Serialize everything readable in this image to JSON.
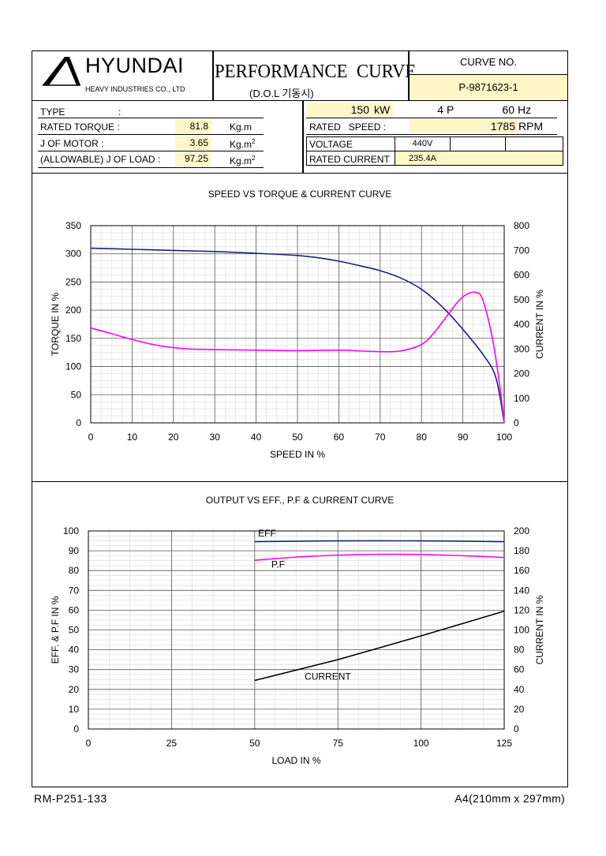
{
  "header": {
    "company": "HYUNDAI",
    "company_sub": "HEAVY INDUSTRIES CO., LTD",
    "doc_title": "PERFORMANCE  CURVE",
    "doc_subtitle": "(D.O.L 기동시)",
    "curve_no_label": "CURVE NO.",
    "curve_no_value": "P-9871623-1"
  },
  "specs_left": {
    "type_label": "TYPE",
    "type_colon": ":",
    "rated_torque_label": "RATED TORQUE :",
    "rated_torque_value": "81.8",
    "rated_torque_unit": "Kg.m",
    "j_motor_label": "J OF MOTOR :",
    "j_motor_value": "3.65",
    "j_motor_unit": "Kg.m",
    "j_load_label": "(ALLOWABLE) J OF LOAD :",
    "j_load_value": "97.25",
    "j_load_unit": "Kg.m",
    "unit_sup": "2"
  },
  "specs_right": {
    "power_value": "150",
    "power_unit": "kW",
    "poles_value": "4",
    "poles_unit": "P",
    "freq_value": "60",
    "freq_unit": "Hz",
    "speed_label": "RATED   SPEED :",
    "speed_value": "1785",
    "speed_unit": "RPM",
    "voltage_label": "VOLTAGE",
    "voltage_value": "440V",
    "current_label": "RATED CURRENT",
    "current_value": "235.4A"
  },
  "chart_data": [
    {
      "type": "line",
      "title": "SPEED VS TORQUE & CURRENT CURVE",
      "xlabel": "SPEED IN %",
      "ylabel": "TORQUE IN %",
      "y2label": "CURRENT IN %",
      "xlim": [
        0,
        100
      ],
      "ylim": [
        0,
        350
      ],
      "y2lim": [
        0,
        800
      ],
      "xticks": [
        0,
        10,
        20,
        30,
        40,
        50,
        60,
        70,
        80,
        90,
        100
      ],
      "yticks": [
        0,
        50,
        100,
        150,
        200,
        250,
        300,
        350
      ],
      "y2ticks": [
        0,
        100,
        200,
        300,
        400,
        500,
        600,
        700,
        800
      ],
      "grid": true,
      "series": [
        {
          "color": "#1a237e",
          "axis": "left",
          "x": [
            0,
            10,
            20,
            30,
            40,
            50,
            55,
            60,
            65,
            70,
            75,
            80,
            85,
            90,
            95,
            98,
            100
          ],
          "y": [
            310,
            308,
            306,
            304,
            301,
            297,
            293,
            287,
            279,
            270,
            257,
            237,
            206,
            166,
            120,
            80,
            0
          ]
        },
        {
          "color": "#ff00ff",
          "axis": "right",
          "x": [
            0,
            5,
            10,
            15,
            20,
            25,
            30,
            40,
            50,
            60,
            65,
            70,
            75,
            80,
            83,
            86,
            89,
            91,
            93,
            94.5,
            96,
            97.5,
            99,
            100
          ],
          "y": [
            385,
            362,
            338,
            318,
            305,
            299,
            297,
            295,
            293,
            295,
            292,
            289,
            292,
            318,
            365,
            430,
            495,
            522,
            530,
            512,
            430,
            310,
            140,
            0
          ]
        }
      ]
    },
    {
      "type": "line",
      "title": "OUTPUT VS EFF., P.F & CURRENT CURVE",
      "xlabel": "LOAD IN %",
      "ylabel": "EFF. & P.F IN %",
      "y2label": "CURRENT IN %",
      "xlim": [
        0,
        125
      ],
      "ylim": [
        0,
        100
      ],
      "y2lim": [
        0,
        200
      ],
      "xticks": [
        0,
        25,
        50,
        75,
        100,
        125
      ],
      "yticks": [
        0,
        10,
        20,
        30,
        40,
        50,
        60,
        70,
        80,
        90,
        100
      ],
      "y2ticks": [
        0,
        20,
        40,
        60,
        80,
        100,
        120,
        140,
        160,
        180,
        200
      ],
      "grid": true,
      "series": [
        {
          "name": "EFF",
          "color": "#1a237e",
          "axis": "left",
          "x": [
            50,
            75,
            100,
            125
          ],
          "y": [
            94.6,
            95.0,
            95.0,
            94.6
          ]
        },
        {
          "name": "P.F",
          "color": "#ff00ff",
          "axis": "left",
          "x": [
            50,
            62.5,
            75,
            87.5,
            100,
            112.5,
            125
          ],
          "y": [
            85.2,
            86.8,
            87.8,
            88.2,
            88.1,
            87.5,
            86.6
          ]
        },
        {
          "name": "CURRENT",
          "color": "#000000",
          "axis": "right",
          "x": [
            50,
            75,
            100,
            125
          ],
          "y": [
            49,
            70,
            94,
            119
          ]
        }
      ]
    }
  ],
  "footer": {
    "doc_code": "RM-P251-133",
    "paper_size": "A4(210mm x 297mm)"
  }
}
